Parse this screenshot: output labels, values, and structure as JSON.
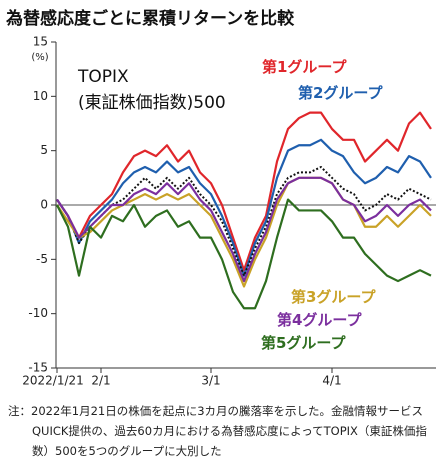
{
  "chart_data": {
    "type": "line",
    "title": "為替感応度ごとに累積リターンを比較",
    "y_unit": "(%)",
    "note": "注：2022年1月21日の株価を起点に3カ月の騰落率を示した。金融情報サービスQUICK提供の、過去60カ月における為替感応度によってTOPIX（東証株価指数）500を5つのグループに大別した",
    "categories": [
      "2022/1/21",
      null,
      null,
      null,
      "2/1",
      null,
      null,
      null,
      null,
      null,
      null,
      null,
      null,
      null,
      "3/1",
      null,
      null,
      null,
      null,
      null,
      null,
      null,
      null,
      null,
      null,
      "4/1",
      null,
      null,
      null,
      null,
      null,
      null,
      null,
      null,
      null
    ],
    "ylim": [
      -15,
      15
    ],
    "yticks": [
      -15,
      -10,
      -5,
      0,
      5,
      10,
      15
    ],
    "series": [
      {
        "name": "第1グループ",
        "color": "#e0262b",
        "values": [
          0.5,
          -1,
          -3,
          -1,
          0,
          1,
          3,
          4.5,
          5,
          4.5,
          5.5,
          4,
          5,
          3,
          2,
          0,
          -3,
          -6,
          -3,
          -1,
          4,
          7,
          8,
          8.5,
          8.5,
          7,
          6,
          6,
          4,
          5,
          6,
          5,
          7.5,
          8.5,
          7
        ]
      },
      {
        "name": "第2グループ",
        "color": "#1f5fae",
        "values": [
          0.5,
          -1,
          -3.5,
          -1.5,
          -0.5,
          0.5,
          2,
          3,
          3.5,
          3,
          4,
          3,
          3.5,
          2,
          1,
          -1,
          -3.5,
          -6.5,
          -3.5,
          -1.5,
          2.5,
          5,
          5.5,
          5.5,
          6,
          5,
          4.5,
          3,
          2,
          2.5,
          3.5,
          3,
          4.5,
          4,
          2.5
        ]
      },
      {
        "name": "TOPIX\n(東証株価指数)500",
        "color": "#111111",
        "dash": true,
        "values": [
          0.5,
          -1,
          -3.5,
          -2,
          -1,
          0,
          0.5,
          1.5,
          2.5,
          1.5,
          2.5,
          1.5,
          2.5,
          1,
          0,
          -1.5,
          -4,
          -6.5,
          -4,
          -2,
          1,
          2.5,
          3,
          3,
          3.5,
          2.5,
          1.5,
          1,
          -0.5,
          0,
          1,
          0.5,
          1.5,
          1,
          0.5
        ]
      },
      {
        "name": "第3グループ",
        "color": "#c9a227",
        "values": [
          0,
          -1.5,
          -3,
          -2.5,
          -1.5,
          -0.5,
          0,
          0.5,
          1,
          0.5,
          1,
          0.5,
          1,
          0,
          -1,
          -3,
          -5,
          -7.5,
          -5,
          -3,
          0,
          2,
          2.5,
          2.5,
          2.5,
          2,
          0.5,
          0,
          -2,
          -2,
          -1,
          -2,
          -1,
          0,
          -1
        ]
      },
      {
        "name": "第4グループ",
        "color": "#7b2f9e",
        "values": [
          0.5,
          -1,
          -3,
          -2,
          -1,
          0,
          0,
          1,
          1.5,
          1,
          2,
          1,
          2,
          0.5,
          -0.5,
          -2.5,
          -4.5,
          -7,
          -4.5,
          -2.5,
          0.5,
          2,
          2.5,
          2.5,
          2.5,
          2,
          0.5,
          0,
          -1.5,
          -1,
          0,
          -1,
          0,
          0.5,
          -0.5
        ]
      },
      {
        "name": "第5グループ",
        "color": "#2e6e1f",
        "values": [
          0,
          -2,
          -6.5,
          -2,
          -3,
          -1,
          -1.5,
          0,
          -2,
          -1,
          -0.5,
          -2,
          -1.5,
          -3,
          -3,
          -5,
          -8,
          -9.5,
          -9.5,
          -7,
          -3,
          0.5,
          -0.5,
          -0.5,
          -0.5,
          -1.5,
          -3,
          -3,
          -4.5,
          -5.5,
          -6.5,
          -7,
          -6.5,
          -6,
          -6.5
        ]
      }
    ]
  }
}
